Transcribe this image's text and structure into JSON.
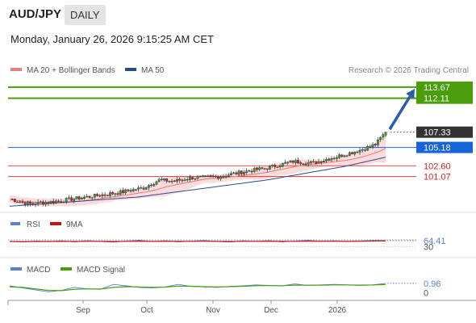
{
  "header": {
    "symbol": "AUD/JPY",
    "period": "DAILY",
    "datetime": "Monday, January 26, 2026 9:15:25 AM CET"
  },
  "colors": {
    "target": "#4a9e0c",
    "pivot": "#1565d8",
    "support": "#d11f1f",
    "price_tag": "#333333",
    "arrow": "#2a5caa",
    "ma20": "#e88080",
    "ma50": "#2a4a8a",
    "bollinger_fill": "#fbdcdc",
    "rsi": "#5b7fd6",
    "rsi_9ma": "#cc1111",
    "macd": "#5b7fd6",
    "macd_signal": "#4a9e0c",
    "candle_up": "#3a9a3a",
    "candle_down": "#cc2222"
  },
  "chart_data": [
    {
      "type": "candlestick",
      "name": "price",
      "legend": [
        {
          "label": "MA 20 + Bollinger Bands",
          "color": "#e88080"
        },
        {
          "label": "MA 50",
          "color": "#2a4a8a"
        }
      ],
      "credit": "Research © 2026 Trading Central",
      "x_ticks": [
        "Sep",
        "Oct",
        "Nov",
        "Dec",
        "2026"
      ],
      "ylim": [
        96.6,
        114.8
      ],
      "levels": [
        {
          "value": 113.67,
          "label": "113.67",
          "role": "target"
        },
        {
          "value": 112.11,
          "label": "112.11",
          "role": "target"
        },
        {
          "value": 107.33,
          "label": "107.33",
          "role": "last-price"
        },
        {
          "value": 105.18,
          "label": "105.18",
          "role": "pivot"
        },
        {
          "value": 102.6,
          "label": "102.60",
          "role": "support"
        },
        {
          "value": 101.07,
          "label": "101.07",
          "role": "support"
        }
      ],
      "anchors": [
        {
          "t": 0,
          "close": 97.9
        },
        {
          "t": 8,
          "close": 97.2
        },
        {
          "t": 18,
          "close": 97.6
        },
        {
          "t": 30,
          "close": 98.2
        },
        {
          "t": 42,
          "close": 98.8
        },
        {
          "t": 52,
          "close": 99.5
        },
        {
          "t": 58,
          "close": 100.6
        },
        {
          "t": 64,
          "close": 100.4
        },
        {
          "t": 70,
          "close": 100.9
        },
        {
          "t": 80,
          "close": 101.0
        },
        {
          "t": 90,
          "close": 101.7
        },
        {
          "t": 100,
          "close": 102.3
        },
        {
          "t": 110,
          "close": 103.2
        },
        {
          "t": 118,
          "close": 103.0
        },
        {
          "t": 128,
          "close": 104.0
        },
        {
          "t": 136,
          "close": 104.8
        },
        {
          "t": 142,
          "close": 105.6
        },
        {
          "t": 146,
          "close": 107.33
        }
      ],
      "ma50_anchors": [
        {
          "t": 0,
          "value": 96.9
        },
        {
          "t": 50,
          "value": 98.2
        },
        {
          "t": 100,
          "value": 100.6
        },
        {
          "t": 130,
          "value": 102.5
        },
        {
          "t": 146,
          "value": 103.8
        }
      ],
      "projection": {
        "from_value": 107.5,
        "to_value": 113.67
      }
    },
    {
      "type": "line",
      "name": "rsi",
      "legend": [
        {
          "label": "RSI",
          "color": "#5b7fd6"
        },
        {
          "label": "9MA",
          "color": "#cc1111"
        }
      ],
      "ylim": [
        0,
        100
      ],
      "levels": [
        {
          "value": 70,
          "label": ""
        },
        {
          "value": 64.41,
          "label": "64.41"
        },
        {
          "value": 30,
          "label": "30"
        }
      ],
      "series": [
        {
          "name": "RSI",
          "values": [
            60,
            56,
            62,
            58,
            63,
            57,
            64,
            59,
            55,
            62,
            66,
            58,
            63,
            57,
            61,
            65,
            59,
            56,
            63,
            60,
            64,
            57,
            62,
            66,
            60,
            63,
            58,
            62,
            65,
            64.41
          ]
        },
        {
          "name": "9MA",
          "values": [
            59,
            58,
            59,
            59,
            60,
            59,
            60,
            60,
            59,
            60,
            61,
            60,
            61,
            60,
            60,
            61,
            60,
            59,
            60,
            60,
            61,
            60,
            60,
            61,
            61,
            61,
            60,
            61,
            62,
            62
          ]
        }
      ]
    },
    {
      "type": "line",
      "name": "macd",
      "legend": [
        {
          "label": "MACD",
          "color": "#5b7fd6"
        },
        {
          "label": "MACD Signal",
          "color": "#4a9e0c"
        }
      ],
      "ylim": [
        -0.6,
        1.6
      ],
      "levels": [
        {
          "value": 0.96,
          "label": "0.96"
        },
        {
          "value": 0,
          "label": "0"
        }
      ],
      "series": [
        {
          "name": "MACD",
          "values": [
            0.7,
            0.5,
            0.3,
            0.1,
            0.25,
            0.55,
            0.4,
            0.35,
            0.85,
            0.7,
            0.55,
            0.5,
            0.6,
            0.85,
            0.65,
            0.6,
            0.55,
            0.65,
            0.7,
            0.8,
            0.75,
            0.7,
            0.9,
            0.75,
            0.8,
            0.85,
            0.8,
            0.75,
            0.8,
            0.96
          ]
        },
        {
          "name": "MACD Signal",
          "values": [
            0.6,
            0.55,
            0.4,
            0.25,
            0.22,
            0.35,
            0.4,
            0.38,
            0.55,
            0.62,
            0.6,
            0.56,
            0.58,
            0.68,
            0.66,
            0.62,
            0.6,
            0.62,
            0.66,
            0.72,
            0.73,
            0.72,
            0.78,
            0.77,
            0.78,
            0.8,
            0.8,
            0.78,
            0.79,
            0.84
          ]
        }
      ]
    }
  ]
}
